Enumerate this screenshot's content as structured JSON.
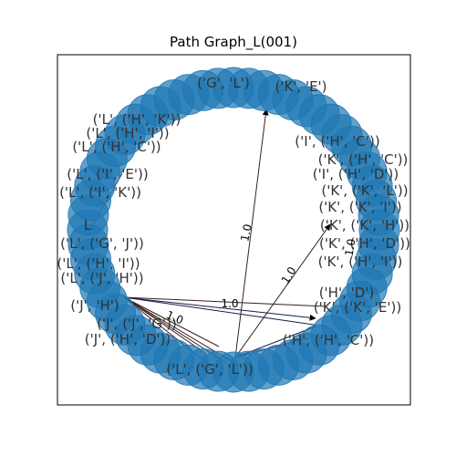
{
  "title": "Path Graph_L(001)",
  "node_color": "#1f77b4",
  "edge_colors": [
    "#3b1f1f",
    "#1a1a4a"
  ],
  "node_labels": [
    "('L', ('H', 'K'))",
    "('L', ('H', 'I'))",
    "('L', ('H', 'C'))",
    "('L', ('I', 'E'))",
    "('L', ('I', 'K'))",
    "('L', ('G', 'J'))",
    "('L', ('H', 'I'))",
    "('L', ('J', 'H'))",
    "('J', 'H')",
    "('J', ('J', 'G'))",
    "('J', ('H', 'D'))",
    "('L', ('G', 'L'))",
    "('I', ('H', 'C'))",
    "('K', ('H', 'C'))",
    "('I', ('H', 'D'))",
    "('K', ('K', 'L'))",
    "('K', ('K', 'I'))",
    "('K', ('K', 'H'))",
    "('K', ('H', 'D'))",
    "('K', ('H', 'I'))",
    "('K', ('K', 'E'))",
    "('H', ('H', 'C'))",
    "('H', 'D')",
    "('G', 'L')",
    "L",
    "('K', 'E')"
  ],
  "edge_labels": [
    "1.0",
    "1.0",
    "1.0",
    "1.0",
    "1.0"
  ]
}
